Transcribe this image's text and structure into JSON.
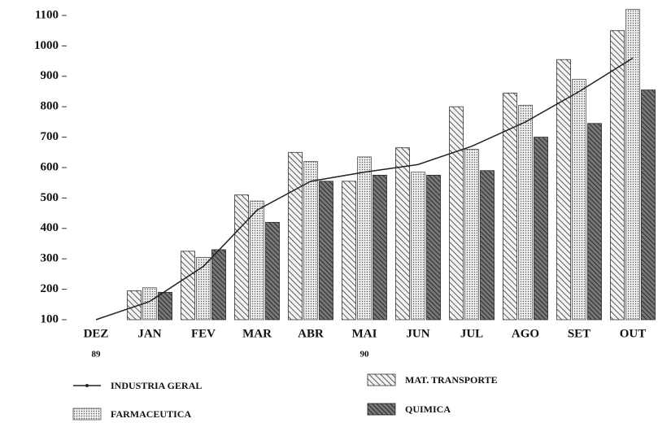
{
  "chart_data": {
    "type": "bar",
    "categories": [
      "DEZ",
      "JAN",
      "FEV",
      "MAR",
      "ABR",
      "MAI",
      "JUN",
      "JUL",
      "AGO",
      "SET",
      "OUT"
    ],
    "year_labels": [
      "89",
      null,
      null,
      null,
      null,
      "90",
      null,
      null,
      null,
      null,
      null
    ],
    "ylim": [
      100,
      1100
    ],
    "yticks": [
      100,
      200,
      300,
      400,
      500,
      600,
      700,
      800,
      900,
      1000,
      1100
    ],
    "series": [
      {
        "name": "INDUSTRIA GERAL",
        "type": "line",
        "color": "#222222",
        "values": [
          100,
          160,
          275,
          460,
          555,
          585,
          610,
          670,
          750,
          850,
          960
        ]
      },
      {
        "name": "MAT. TRANSPORTE",
        "type": "bar",
        "pattern": "hatch",
        "color": "#333333",
        "values": [
          null,
          195,
          325,
          510,
          650,
          555,
          665,
          800,
          845,
          955,
          1050
        ]
      },
      {
        "name": "FARMACEUTICA",
        "type": "bar",
        "pattern": "dots",
        "color": "#555555",
        "values": [
          null,
          205,
          305,
          490,
          620,
          635,
          585,
          660,
          805,
          890,
          1120
        ]
      },
      {
        "name": "QUIMICA",
        "type": "bar",
        "pattern": "dark",
        "color": "#222222",
        "values": [
          null,
          190,
          330,
          420,
          555,
          575,
          575,
          590,
          700,
          745,
          855
        ]
      }
    ]
  }
}
